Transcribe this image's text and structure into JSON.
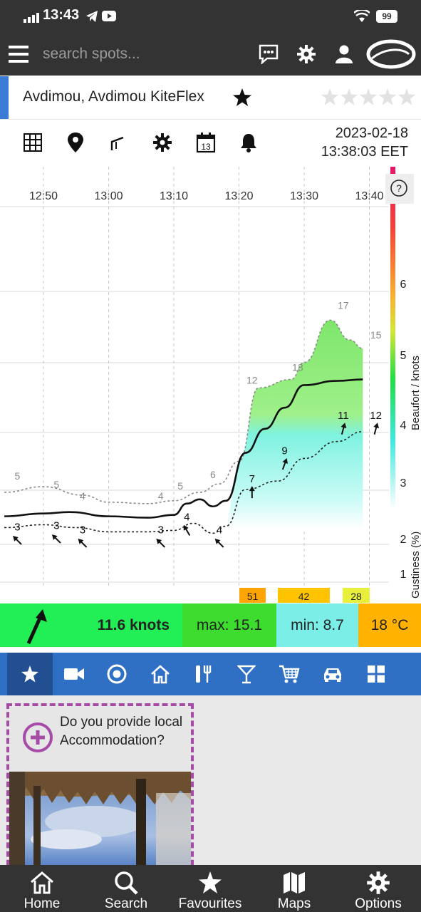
{
  "status_bar": {
    "time": "13:43",
    "battery": "99"
  },
  "top_bar": {
    "search_placeholder": "search spots...",
    "icons": [
      "menu-icon",
      "chat-icon",
      "gear-icon",
      "user-icon",
      "logo"
    ]
  },
  "spot": {
    "name": "Avdimou, Avdimou KiteFlex",
    "rating_stars": 5,
    "rating_filled": 0
  },
  "toolbar": {
    "icons": [
      "grid-icon",
      "location-pin-icon",
      "graph-icon",
      "gear-icon",
      "calendar-icon",
      "bell-icon"
    ],
    "calendar_day": "13",
    "date": "2023-02-18",
    "time": "13:38:03 EET"
  },
  "chart_data": {
    "type": "line",
    "x_ticks": [
      "12:50",
      "13:00",
      "13:10",
      "13:20",
      "13:30",
      "13:40"
    ],
    "right_axis_label": "Beaufort / knots",
    "right_axis_ticks": [
      "6",
      "5",
      "4",
      "3",
      "2",
      "1"
    ],
    "gustiness_label": "Gustiness (%)",
    "help_label": "?",
    "gust_labels": [
      {
        "t": "12:45",
        "v": "5"
      },
      {
        "t": "12:52",
        "v": "5"
      },
      {
        "t": "12:56",
        "v": "4"
      },
      {
        "t": "13:08",
        "v": "4"
      },
      {
        "t": "13:12",
        "v": "5"
      },
      {
        "t": "13:18",
        "v": "6"
      },
      {
        "t": "13:22",
        "v": "12"
      },
      {
        "t": "13:26",
        "v": "13"
      },
      {
        "t": "13:32",
        "v": "17"
      },
      {
        "t": "13:38",
        "v": "15"
      }
    ],
    "avg_labels": [
      {
        "t": "12:46",
        "v": "3"
      },
      {
        "t": "12:52",
        "v": "3"
      },
      {
        "t": "12:56",
        "v": "3"
      },
      {
        "t": "13:08",
        "v": "3"
      },
      {
        "t": "13:12",
        "v": "4"
      },
      {
        "t": "13:18",
        "v": "4"
      },
      {
        "t": "13:22",
        "v": "7"
      },
      {
        "t": "13:28",
        "v": "9"
      },
      {
        "t": "13:32",
        "v": "11"
      },
      {
        "t": "13:38",
        "v": "12"
      }
    ],
    "gustiness_bars": [
      {
        "label": "51",
        "color": "#ffa500"
      },
      {
        "label": "42",
        "color": "#ffc300"
      },
      {
        "label": "28",
        "color": "#e8f03c"
      }
    ]
  },
  "wind_bar": {
    "speed": "11.6 knots",
    "max": "max: 15.1",
    "min": "min: 8.7",
    "temp": "18 °C",
    "colors": {
      "speed": "#22ee55",
      "max": "#3ddc2e",
      "min": "#7beee8",
      "temp": "#ffb300"
    }
  },
  "categories": [
    "star-icon",
    "video-icon",
    "target-icon",
    "home-icon",
    "restaurant-icon",
    "cocktail-icon",
    "cart-icon",
    "car-icon",
    "apps-icon"
  ],
  "accommodation_card": {
    "text": "Do you provide local Accommodation?"
  },
  "bottom_nav": [
    {
      "label": "Home",
      "icon": "home-icon"
    },
    {
      "label": "Search",
      "icon": "search-icon"
    },
    {
      "label": "Favourites",
      "icon": "star-icon"
    },
    {
      "label": "Maps",
      "icon": "map-icon"
    },
    {
      "label": "Options",
      "icon": "gear-icon"
    }
  ]
}
